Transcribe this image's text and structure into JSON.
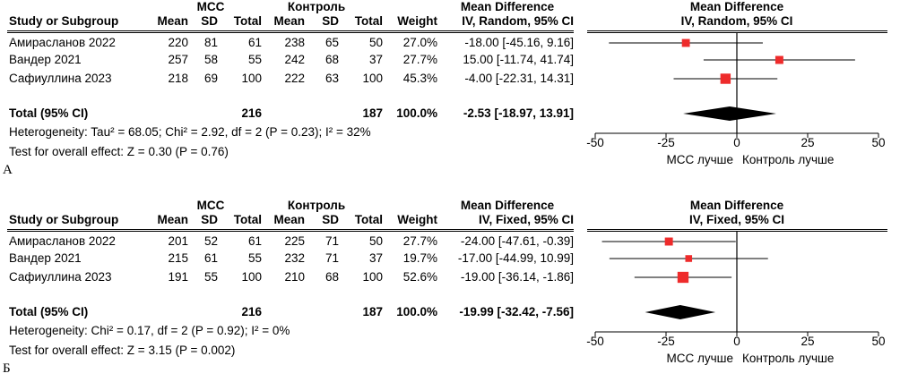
{
  "panels": [
    {
      "letter": "А",
      "group1": "МСС",
      "group2": "Контроль",
      "hdr_effect": "Mean Difference",
      "hdr_method": "IV, Random, 95% CI",
      "plot_hdr_effect": "Mean Difference",
      "plot_hdr_method": "IV, Random, 95% CI",
      "col_study": "Study or Subgroup",
      "col_mean1": "Mean",
      "col_sd1": "SD",
      "col_total1": "Total",
      "col_mean2": "Mean",
      "col_sd2": "SD",
      "col_total2": "Total",
      "col_weight": "Weight",
      "studies": [
        {
          "name": "Амирасланов 2022",
          "m1": "220",
          "sd1": "81",
          "n1": "61",
          "m2": "238",
          "sd2": "65",
          "n2": "50",
          "weight": "27.0%",
          "ci": "-18.00 [-45.16, 9.16]",
          "est": -18.0,
          "lo": -45.16,
          "hi": 9.16,
          "w": 27.0
        },
        {
          "name": "Вандер 2021",
          "m1": "257",
          "sd1": "58",
          "n1": "55",
          "m2": "242",
          "sd2": "68",
          "n2": "37",
          "weight": "27.7%",
          "ci": "15.00 [-11.74, 41.74]",
          "est": 15.0,
          "lo": -11.74,
          "hi": 41.74,
          "w": 27.7
        },
        {
          "name": "Сафиуллина 2023",
          "m1": "218",
          "sd1": "69",
          "n1": "100",
          "m2": "222",
          "sd2": "63",
          "n2": "100",
          "weight": "45.3%",
          "ci": "-4.00 [-22.31, 14.31]",
          "est": -4.0,
          "lo": -22.31,
          "hi": 14.31,
          "w": 45.3
        }
      ],
      "total": {
        "label": "Total (95% CI)",
        "n1": "216",
        "n2": "187",
        "weight": "100.0%",
        "ci": "-2.53 [-18.97, 13.91]",
        "est": -2.53,
        "lo": -18.97,
        "hi": 13.91
      },
      "heterogeneity": "Heterogeneity: Tau² = 68.05; Chi² = 2.92, df = 2 (P = 0.23); I² = 32%",
      "overall": "Test for overall effect: Z = 0.30 (P = 0.76)",
      "axis": {
        "min": -50,
        "max": 50,
        "ticks": [
          -50,
          -25,
          0,
          25,
          50
        ],
        "tick_labels": [
          "-50",
          "-25",
          "0",
          "25",
          "50"
        ]
      },
      "favours_left": "МСС лучше",
      "favours_right": "Контроль лучше"
    },
    {
      "letter": "Б",
      "group1": "МСС",
      "group2": "Контроль",
      "hdr_effect": "Mean Difference",
      "hdr_method": "IV, Fixed, 95% CI",
      "plot_hdr_effect": "Mean Difference",
      "plot_hdr_method": "IV, Fixed, 95% CI",
      "col_study": "Study or Subgroup",
      "col_mean1": "Mean",
      "col_sd1": "SD",
      "col_total1": "Total",
      "col_mean2": "Mean",
      "col_sd2": "SD",
      "col_total2": "Total",
      "col_weight": "Weight",
      "studies": [
        {
          "name": "Амирасланов 2022",
          "m1": "201",
          "sd1": "52",
          "n1": "61",
          "m2": "225",
          "sd2": "71",
          "n2": "50",
          "weight": "27.7%",
          "ci": "-24.00 [-47.61, -0.39]",
          "est": -24.0,
          "lo": -47.61,
          "hi": -0.39,
          "w": 27.7
        },
        {
          "name": "Вандер 2021",
          "m1": "215",
          "sd1": "61",
          "n1": "55",
          "m2": "232",
          "sd2": "71",
          "n2": "37",
          "weight": "19.7%",
          "ci": "-17.00 [-44.99, 10.99]",
          "est": -17.0,
          "lo": -44.99,
          "hi": 10.99,
          "w": 19.7
        },
        {
          "name": "Сафиуллина 2023",
          "m1": "191",
          "sd1": "55",
          "n1": "100",
          "m2": "210",
          "sd2": "68",
          "n2": "100",
          "weight": "52.6%",
          "ci": "-19.00 [-36.14, -1.86]",
          "est": -19.0,
          "lo": -36.14,
          "hi": -1.86,
          "w": 52.6
        }
      ],
      "total": {
        "label": "Total (95% CI)",
        "n1": "216",
        "n2": "187",
        "weight": "100.0%",
        "ci": "-19.99 [-32.42, -7.56]",
        "est": -19.99,
        "lo": -32.42,
        "hi": -7.56
      },
      "heterogeneity": "Heterogeneity: Chi² = 0.17, df = 2 (P = 0.92); I² = 0%",
      "overall": "Test for overall effect: Z = 3.15 (P = 0.002)",
      "axis": {
        "min": -50,
        "max": 50,
        "ticks": [
          -50,
          -25,
          0,
          25,
          50
        ],
        "tick_labels": [
          "-50",
          "-25",
          "0",
          "25",
          "50"
        ]
      },
      "favours_left": "МСС лучше",
      "favours_right": "Контроль лучше"
    }
  ],
  "colors": {
    "square": "#ee2b2b",
    "diamond": "#000000",
    "line": "#000000"
  }
}
